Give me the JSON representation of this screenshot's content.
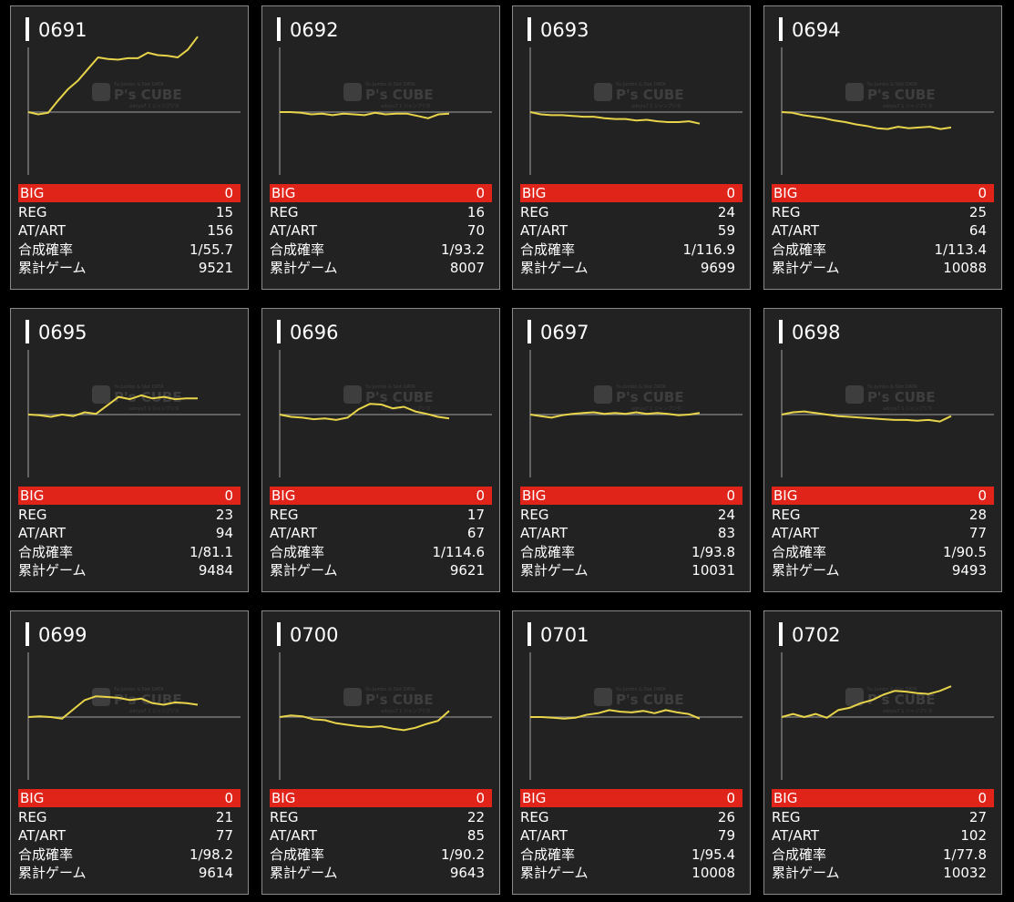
{
  "labels": {
    "big": "BIG",
    "reg": "REG",
    "at": "AT/ART",
    "prob": "合成確率",
    "games": "累計ゲーム"
  },
  "colors": {
    "line": "#e8d44a",
    "big_bg": "#e1241a",
    "panel": "#222222",
    "axis": "#777777"
  },
  "watermark": {
    "brand": "P's CUBE",
    "sub": "Yu-Jumbo & Slot DATA",
    "sub2": "adnyu7 1 ジャンプジタ"
  },
  "machines": [
    {
      "id": "0691",
      "big": "0",
      "reg": "15",
      "at": "156",
      "prob": "1/55.7",
      "games": "9521",
      "trend": [
        0,
        -3,
        -1,
        15,
        30,
        41,
        56,
        71,
        69,
        68,
        70,
        70,
        77,
        74,
        73,
        71,
        81,
        98
      ]
    },
    {
      "id": "0692",
      "big": "0",
      "reg": "16",
      "at": "70",
      "prob": "1/93.2",
      "games": "8007",
      "trend": [
        0,
        0,
        -1,
        -3,
        -2,
        -4,
        -2,
        -3,
        -4,
        -1,
        -3,
        -2,
        -2,
        -5,
        -8,
        -3,
        -2
      ]
    },
    {
      "id": "0693",
      "big": "0",
      "reg": "24",
      "at": "59",
      "prob": "1/116.9",
      "games": "9699",
      "trend": [
        0,
        -3,
        -4,
        -4,
        -5,
        -6,
        -6,
        -8,
        -9,
        -9,
        -11,
        -10,
        -12,
        -13,
        -13,
        -12,
        -15
      ]
    },
    {
      "id": "0694",
      "big": "0",
      "reg": "25",
      "at": "64",
      "prob": "1/113.4",
      "games": "10088",
      "trend": [
        0,
        -1,
        -4,
        -6,
        -8,
        -11,
        -13,
        -16,
        -18,
        -21,
        -22,
        -19,
        -21,
        -20,
        -19,
        -22,
        -20
      ]
    },
    {
      "id": "0695",
      "big": "0",
      "reg": "23",
      "at": "94",
      "prob": "1/81.1",
      "games": "9484",
      "trend": [
        0,
        -1,
        -3,
        0,
        -2,
        3,
        1,
        12,
        23,
        20,
        25,
        21,
        23,
        20,
        21,
        21
      ]
    },
    {
      "id": "0696",
      "big": "0",
      "reg": "17",
      "at": "67",
      "prob": "1/114.6",
      "games": "9621",
      "trend": [
        0,
        -3,
        -4,
        -6,
        -5,
        -7,
        -4,
        7,
        14,
        13,
        8,
        10,
        4,
        1,
        -3,
        -5
      ]
    },
    {
      "id": "0697",
      "big": "0",
      "reg": "24",
      "at": "83",
      "prob": "1/93.8",
      "games": "10031",
      "trend": [
        0,
        -2,
        -4,
        -1,
        1,
        2,
        3,
        1,
        2,
        1,
        3,
        1,
        2,
        1,
        -1,
        0,
        2
      ]
    },
    {
      "id": "0698",
      "big": "0",
      "reg": "28",
      "at": "77",
      "prob": "1/90.5",
      "games": "9493",
      "trend": [
        0,
        3,
        4,
        2,
        0,
        -2,
        -3,
        -4,
        -5,
        -6,
        -7,
        -7,
        -8,
        -7,
        -9,
        -2
      ]
    },
    {
      "id": "0699",
      "big": "0",
      "reg": "21",
      "at": "77",
      "prob": "1/98.2",
      "games": "9614",
      "trend": [
        0,
        1,
        0,
        -2,
        10,
        22,
        27,
        26,
        25,
        22,
        24,
        18,
        16,
        19,
        18,
        16
      ]
    },
    {
      "id": "0700",
      "big": "0",
      "reg": "22",
      "at": "85",
      "prob": "1/90.2",
      "games": "9643",
      "trend": [
        0,
        2,
        1,
        -3,
        -4,
        -8,
        -10,
        -12,
        -13,
        -12,
        -15,
        -17,
        -14,
        -9,
        -5,
        8
      ]
    },
    {
      "id": "0701",
      "big": "0",
      "reg": "26",
      "at": "79",
      "prob": "1/95.4",
      "games": "10008",
      "trend": [
        0,
        0,
        -1,
        -2,
        -1,
        3,
        5,
        9,
        7,
        6,
        8,
        5,
        9,
        6,
        4,
        -2
      ]
    },
    {
      "id": "0702",
      "big": "0",
      "reg": "27",
      "at": "102",
      "prob": "1/77.8",
      "games": "10032",
      "trend": [
        0,
        4,
        0,
        4,
        -1,
        9,
        12,
        18,
        22,
        29,
        34,
        33,
        31,
        30,
        34,
        40
      ]
    }
  ]
}
